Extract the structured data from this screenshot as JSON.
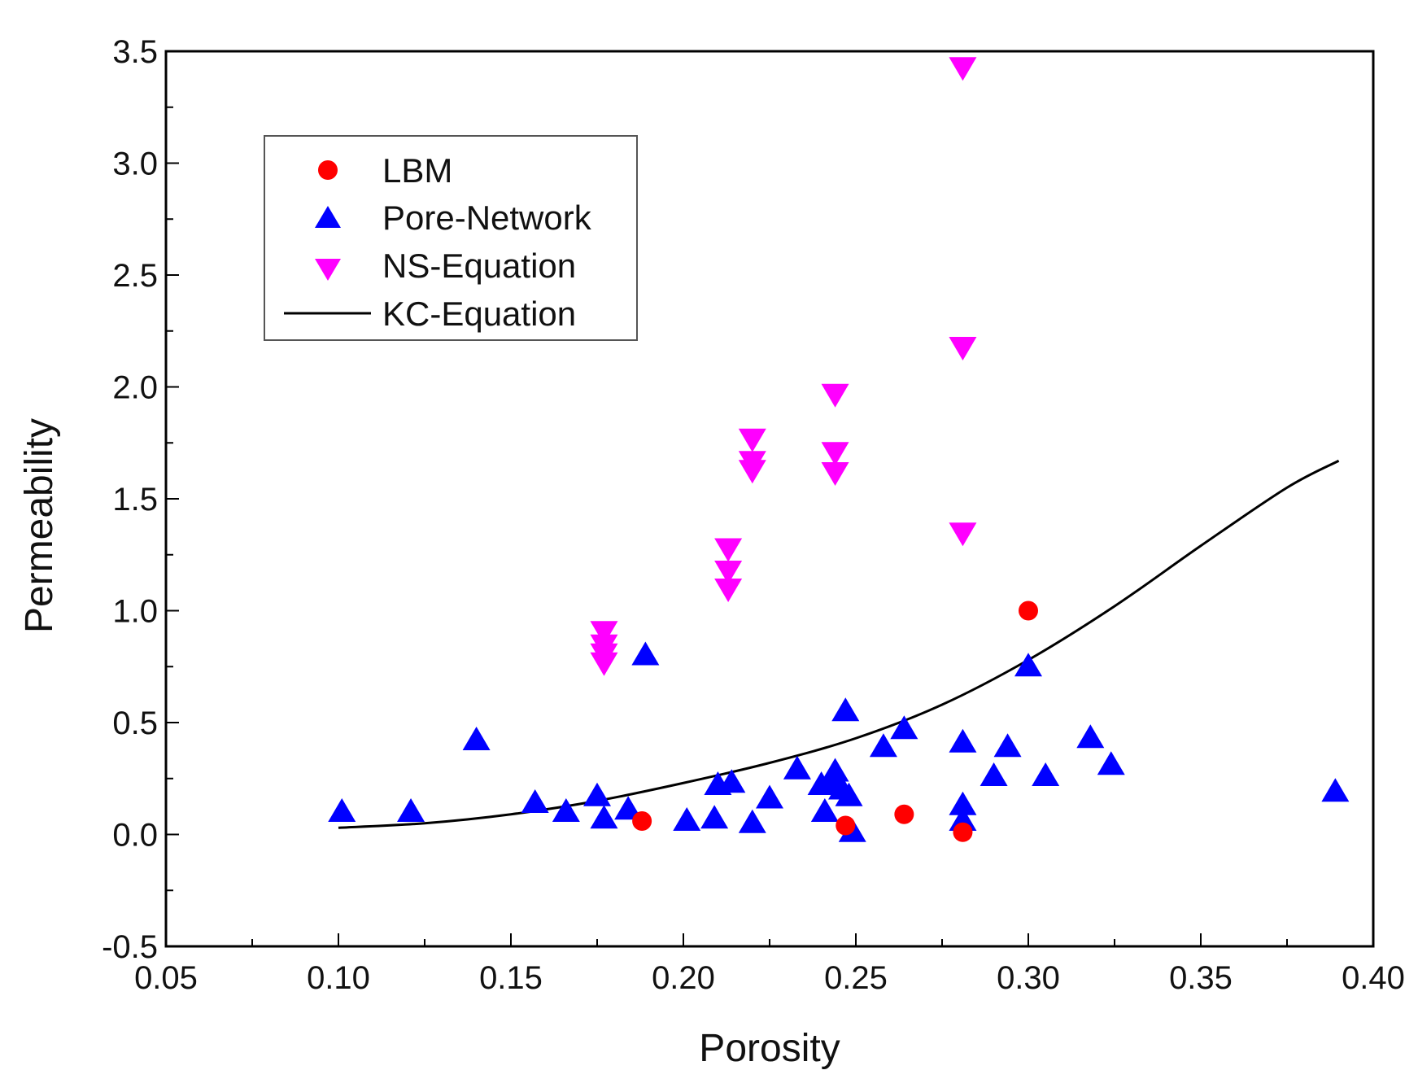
{
  "chart_data": {
    "type": "scatter",
    "title": "",
    "xlabel": "Porosity",
    "ylabel": "Permeability",
    "xlim": [
      0.05,
      0.4
    ],
    "ylim": [
      -0.5,
      3.5
    ],
    "x_ticks": [
      "0.05",
      "0.10",
      "0.15",
      "0.20",
      "0.25",
      "0.30",
      "0.35",
      "0.40"
    ],
    "y_ticks": [
      "-0.5",
      "0.0",
      "0.5",
      "1.0",
      "1.5",
      "2.0",
      "2.5",
      "3.0",
      "3.5"
    ],
    "x_minor_step": 0.025,
    "y_minor_step": 0.25,
    "grid": false,
    "legend_position": "upper-left",
    "series": [
      {
        "name": "LBM",
        "marker": "circle",
        "color": "#ff0000",
        "points": [
          [
            0.188,
            0.06
          ],
          [
            0.247,
            0.04
          ],
          [
            0.264,
            0.09
          ],
          [
            0.281,
            0.01
          ],
          [
            0.3,
            1.0
          ]
        ]
      },
      {
        "name": "Pore-Network",
        "marker": "triangle-up",
        "color": "#0000ff",
        "points": [
          [
            0.101,
            0.1
          ],
          [
            0.121,
            0.1
          ],
          [
            0.14,
            0.42
          ],
          [
            0.157,
            0.14
          ],
          [
            0.166,
            0.1
          ],
          [
            0.175,
            0.17
          ],
          [
            0.177,
            0.07
          ],
          [
            0.184,
            0.11
          ],
          [
            0.189,
            0.8
          ],
          [
            0.201,
            0.06
          ],
          [
            0.209,
            0.07
          ],
          [
            0.21,
            0.22
          ],
          [
            0.214,
            0.23
          ],
          [
            0.22,
            0.05
          ],
          [
            0.225,
            0.16
          ],
          [
            0.233,
            0.29
          ],
          [
            0.24,
            0.22
          ],
          [
            0.241,
            0.1
          ],
          [
            0.243,
            0.23
          ],
          [
            0.244,
            0.28
          ],
          [
            0.246,
            0.2
          ],
          [
            0.247,
            0.55
          ],
          [
            0.248,
            0.17
          ],
          [
            0.249,
            0.01
          ],
          [
            0.258,
            0.39
          ],
          [
            0.264,
            0.47
          ],
          [
            0.281,
            0.41
          ],
          [
            0.281,
            0.13
          ],
          [
            0.281,
            0.06
          ],
          [
            0.29,
            0.26
          ],
          [
            0.294,
            0.39
          ],
          [
            0.3,
            0.75
          ],
          [
            0.305,
            0.26
          ],
          [
            0.318,
            0.43
          ],
          [
            0.324,
            0.31
          ],
          [
            0.389,
            0.19
          ]
        ]
      },
      {
        "name": "NS-Equation",
        "marker": "triangle-down",
        "color": "#ff00ff",
        "points": [
          [
            0.177,
            0.91
          ],
          [
            0.177,
            0.85
          ],
          [
            0.177,
            0.81
          ],
          [
            0.177,
            0.77
          ],
          [
            0.213,
            1.28
          ],
          [
            0.213,
            1.18
          ],
          [
            0.213,
            1.1
          ],
          [
            0.22,
            1.77
          ],
          [
            0.22,
            1.67
          ],
          [
            0.22,
            1.63
          ],
          [
            0.244,
            1.97
          ],
          [
            0.244,
            1.71
          ],
          [
            0.244,
            1.62
          ],
          [
            0.281,
            3.43
          ],
          [
            0.281,
            2.18
          ],
          [
            0.281,
            1.35
          ]
        ]
      },
      {
        "name": "KC-Equation",
        "marker": "line",
        "color": "#000000",
        "points": [
          [
            0.1,
            0.03
          ],
          [
            0.125,
            0.05
          ],
          [
            0.15,
            0.09
          ],
          [
            0.175,
            0.15
          ],
          [
            0.2,
            0.23
          ],
          [
            0.225,
            0.32
          ],
          [
            0.25,
            0.43
          ],
          [
            0.275,
            0.58
          ],
          [
            0.3,
            0.78
          ],
          [
            0.325,
            1.02
          ],
          [
            0.35,
            1.29
          ],
          [
            0.375,
            1.55
          ],
          [
            0.39,
            1.67
          ]
        ]
      }
    ]
  }
}
